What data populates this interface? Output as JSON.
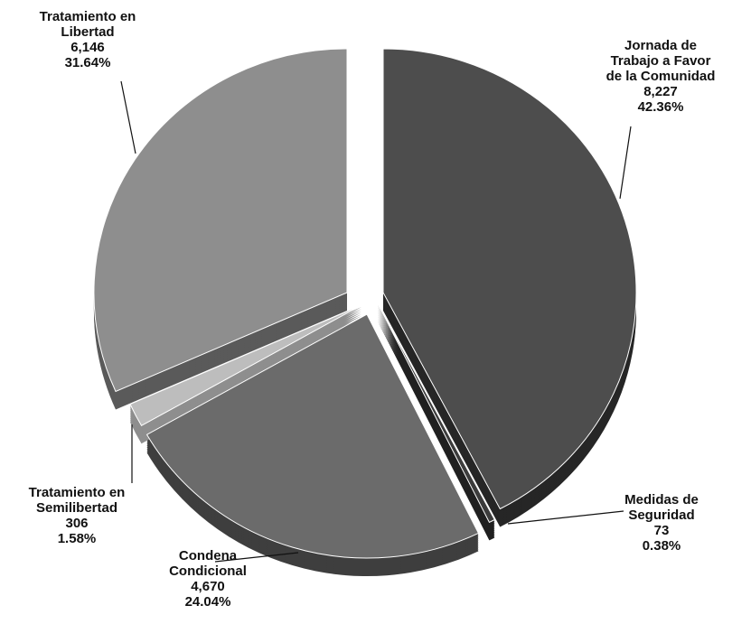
{
  "chart_data": {
    "type": "pie",
    "title": "",
    "categories": [
      "Jornada de Trabajo a Favor de la Comunidad",
      "Medidas de Seguridad",
      "Condena Condicional",
      "Tratamiento en Semilibertad",
      "Tratamiento en Libertad"
    ],
    "values": [
      8227,
      73,
      4670,
      306,
      6146
    ],
    "slices": [
      {
        "label_lines": [
          "Jornada de",
          "Trabajo a Favor",
          "de la Comunidad"
        ],
        "value_text": "8,227",
        "percent_text": "42.36%",
        "percent": 42.36,
        "color": "#4d4d4d",
        "side_color": "#262626"
      },
      {
        "label_lines": [
          "Medidas de",
          "Seguridad"
        ],
        "value_text": "73",
        "percent_text": "0.38%",
        "percent": 0.38,
        "color": "#3c3c3c",
        "side_color": "#202020"
      },
      {
        "label_lines": [
          "Condena",
          "Condicional"
        ],
        "value_text": "4,670",
        "percent_text": "24.04%",
        "percent": 24.04,
        "color": "#6b6b6b",
        "side_color": "#3e3e3e"
      },
      {
        "label_lines": [
          "Tratamiento en",
          "Semilibertad"
        ],
        "value_text": "306",
        "percent_text": "1.58%",
        "percent": 1.58,
        "color": "#bdbdbd",
        "side_color": "#8e8e8e"
      },
      {
        "label_lines": [
          "Tratamiento en",
          "Libertad"
        ],
        "value_text": "6,146",
        "percent_text": "31.64%",
        "percent": 31.64,
        "color": "#8e8e8e",
        "side_color": "#5a5a5a"
      }
    ],
    "start_angle_deg": 0,
    "direction": "clockwise",
    "exploded": true,
    "style": "3d"
  }
}
